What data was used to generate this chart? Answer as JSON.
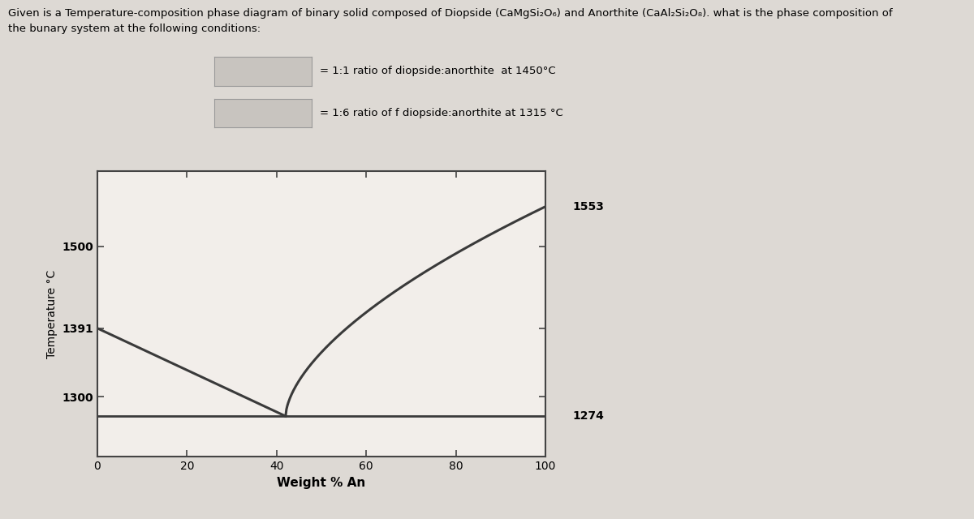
{
  "title_line1": "Given is a Temperature-composition phase diagram of binary solid composed of Diopside (CaMgSi₂O₆) and Anorthite (CaAl₂Si₂O₈). what is the phase composition of",
  "title_line2": "the bunary system at the following conditions:",
  "legend_box1_text": "= 1:1 ratio of diopside:anorthite  at 1450°C",
  "legend_box2_text": "= 1:6 ratio of f diopside:anorthite at 1315 °C",
  "ylabel": "Temperature °C",
  "xlabel": "Weight % An",
  "xlim": [
    0,
    100
  ],
  "ylim": [
    1220,
    1600
  ],
  "yticks": [
    1300,
    1391,
    1500
  ],
  "xticks": [
    0,
    20,
    40,
    60,
    80,
    100
  ],
  "temp_1391": 1391,
  "temp_1553": 1553,
  "temp_1274": 1274,
  "eutectic_x": 42,
  "eutectic_T": 1274,
  "di_melt_x": 0,
  "di_melt_T": 1391,
  "an_melt_x": 100,
  "an_melt_T": 1553,
  "line_color": "#3a3a3a",
  "bg_color": "#ddd9d4",
  "plot_bg": "#f2eeea",
  "box_color": "#c8c4bf",
  "annotation_color": "#2a2a2a"
}
